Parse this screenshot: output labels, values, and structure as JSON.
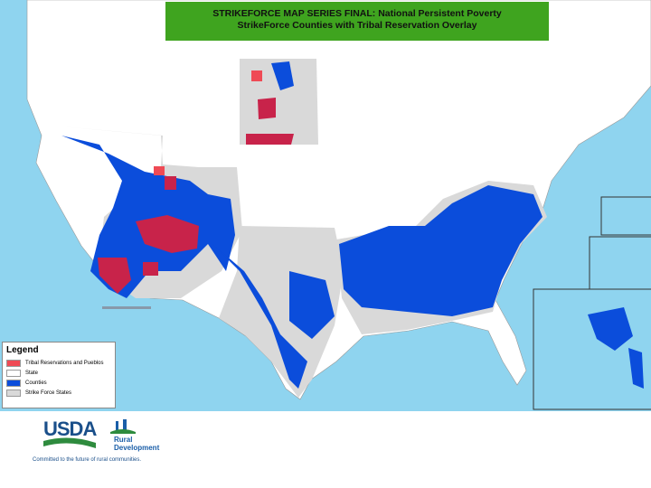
{
  "header": {
    "title_line_1": "STRIKEFORCE MAP SERIES FINAL: National Persistent Poverty",
    "title_line_2": "StrikeForce Counties with Tribal Reservation Overlay"
  },
  "legend": {
    "title": "Legend",
    "items": [
      "Tribal Reservations and Pueblos",
      "State",
      "Counties",
      "Strike Force States"
    ]
  },
  "footer": {
    "logo_text": "USDA",
    "agency_line_1": "Rural",
    "agency_line_2": "Development",
    "tagline": "Committed to the future of rural communities."
  }
}
